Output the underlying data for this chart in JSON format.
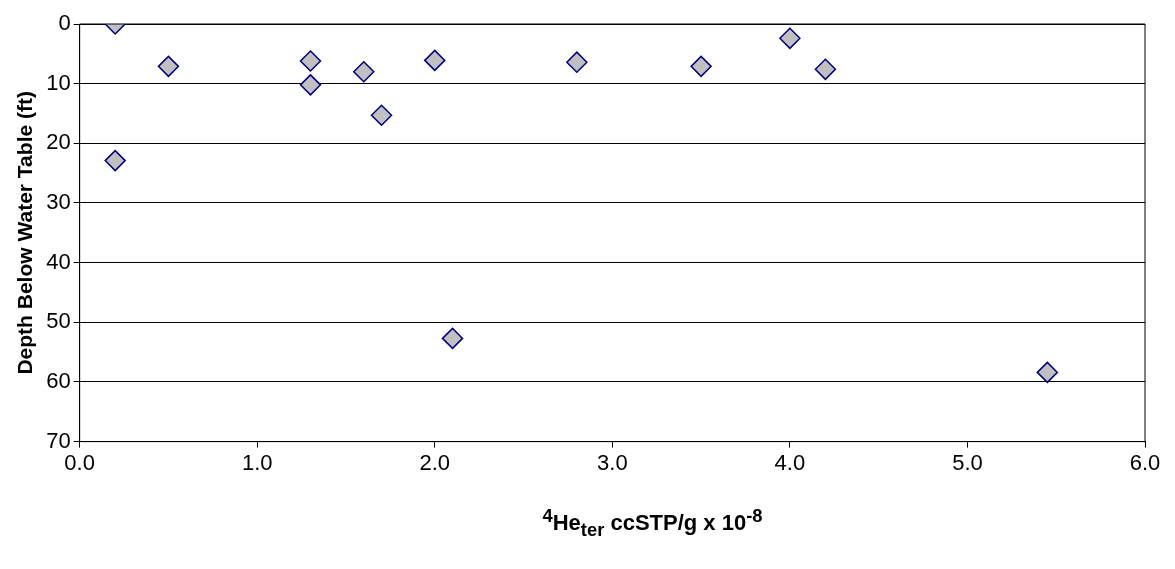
{
  "chart_data": {
    "type": "scatter",
    "xlabel": "$^{4}$He$_{ter}$ ccSTP/g x 10$^{-8}$",
    "ylabel": "Depth Below Water Table (ft)",
    "x": [
      0.2,
      0.5,
      0.2,
      1.3,
      1.3,
      1.6,
      1.7,
      2.0,
      2.1,
      2.8,
      3.5,
      4.0,
      4.2,
      5.45
    ],
    "values": [
      0,
      7.1,
      22.9,
      6.2,
      10.2,
      8.0,
      15.3,
      6.1,
      52.7,
      6.4,
      7.1,
      2.4,
      7.6,
      58.4
    ],
    "color": "#c0c0c0",
    "xlim": [
      0,
      6
    ],
    "xticks": [
      {
        "value": 0,
        "label": "0.0"
      },
      {
        "value": 1,
        "label": "1.0"
      },
      {
        "value": 2,
        "label": "2.0"
      },
      {
        "value": 3,
        "label": "3.0"
      },
      {
        "value": 4,
        "label": "4.0"
      },
      {
        "value": 5,
        "label": "5.0"
      },
      {
        "value": 6,
        "label": "6.0"
      }
    ],
    "ylim": [
      70,
      0
    ],
    "yticks": [
      0,
      10,
      20,
      30,
      40,
      50,
      60,
      70
    ],
    "grid": "y",
    "marker": "diamond",
    "legend": false
  }
}
